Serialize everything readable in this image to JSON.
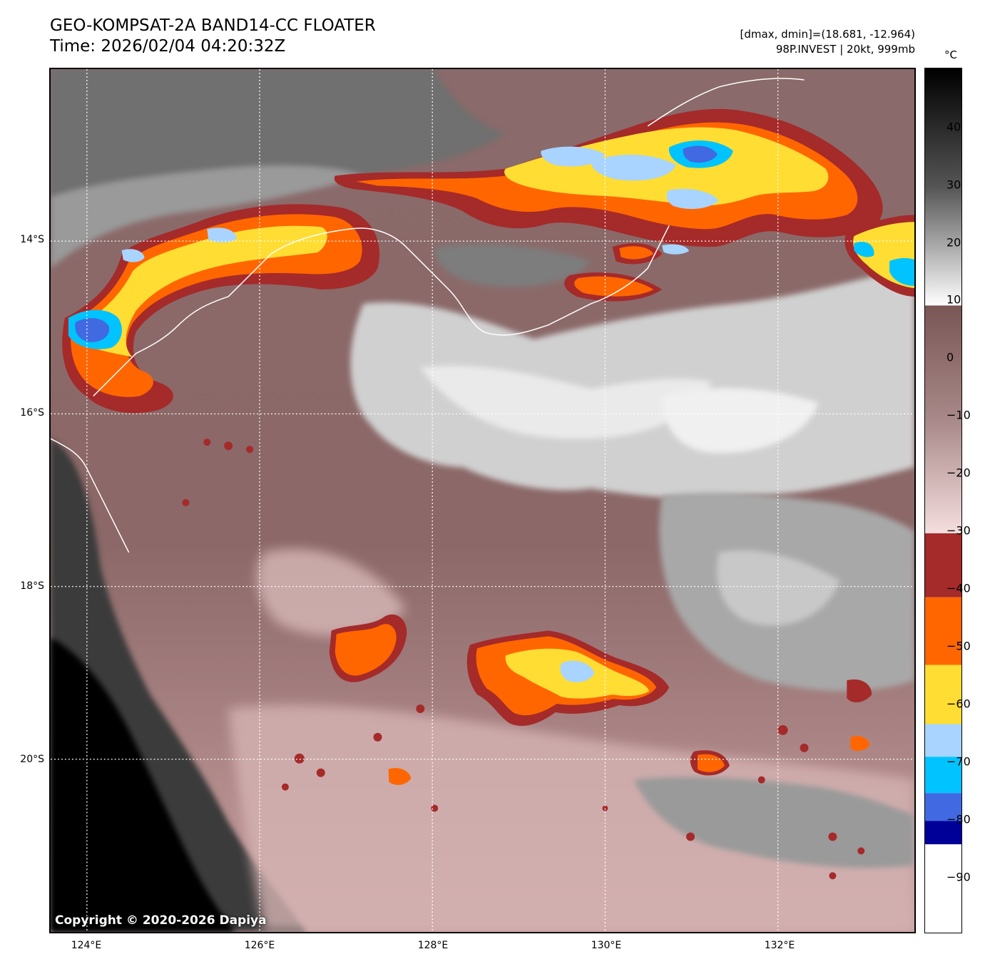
{
  "header": {
    "title_line1": "GEO-KOMPSAT-2A BAND14-CC FLOATER",
    "title_line2": "Time: 2026/02/04 04:20:32Z",
    "range_text": "[dmax, dmin]=(18.681, -12.964)",
    "storm_text": "98P.INVEST | 20kt, 999mb"
  },
  "map": {
    "copyright": "Copyright © 2020-2026 Dapiya",
    "lat_labels": [
      "14°S",
      "16°S",
      "18°S",
      "20°S"
    ],
    "lon_labels": [
      "124°E",
      "126°E",
      "128°E",
      "130°E",
      "132°E"
    ],
    "extent": {
      "lon_min": 123.6,
      "lon_max": 133.6,
      "lat_max": 12.0,
      "lat_min": 22.0
    },
    "gridlines": "dotted white"
  },
  "colorbar": {
    "unit": "°C",
    "ticks": [
      "40",
      "30",
      "20",
      "10",
      "0",
      "−10",
      "−20",
      "−30",
      "−40",
      "−50",
      "−60",
      "−70",
      "−80",
      "−90"
    ],
    "colors": {
      "dark_red": "#a52a2a",
      "orange": "#ff6600",
      "yellow": "#ffdd33",
      "light_blue": "#a8d4ff",
      "cyan": "#00c3ff",
      "blue": "#4169e1",
      "navy": "#000099"
    }
  }
}
